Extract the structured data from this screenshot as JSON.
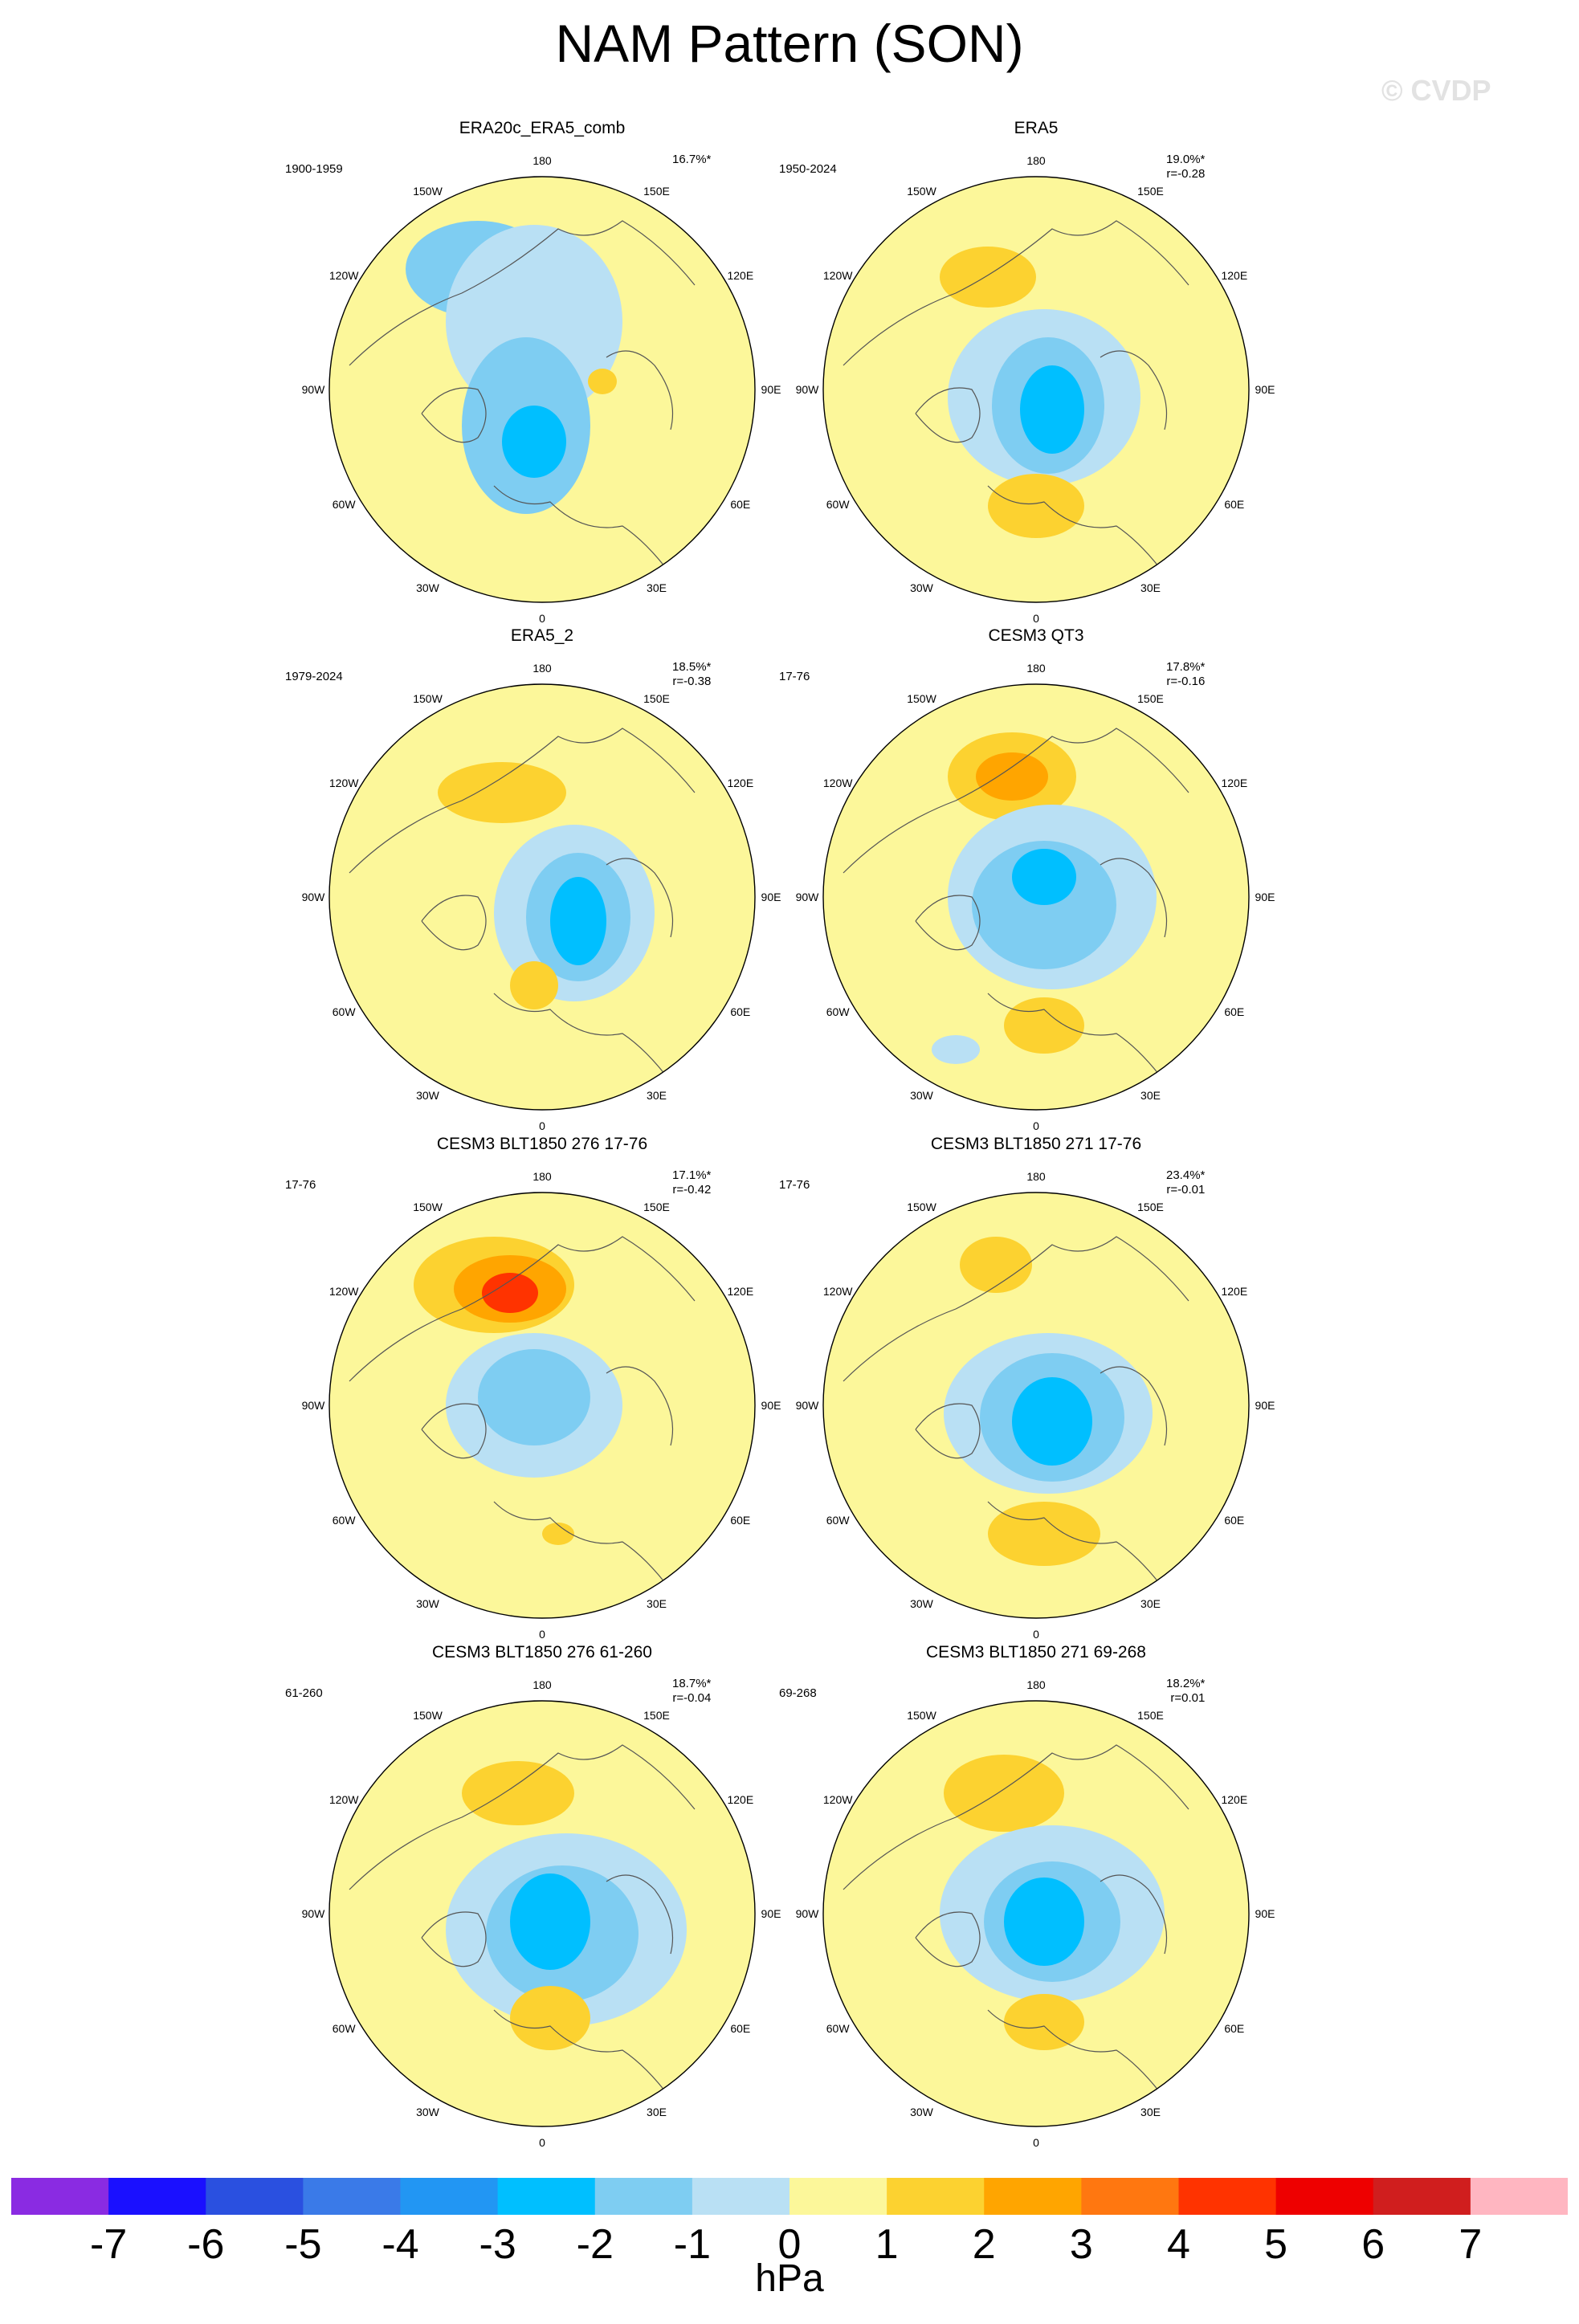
{
  "title": "NAM Pattern (SON)",
  "watermark": "© CVDP",
  "lon_labels": [
    "180",
    "150E",
    "120E",
    "90E",
    "60E",
    "30E",
    "0",
    "30W",
    "60W",
    "90W",
    "120W",
    "150W"
  ],
  "panels": [
    {
      "title": "ERA20c_ERA5_comb",
      "period": "1900-1959",
      "variance": "16.7%*",
      "corr": ""
    },
    {
      "title": "ERA5",
      "period": "1950-2024",
      "variance": "19.0%*",
      "corr": "r=-0.28"
    },
    {
      "title": "ERA5_2",
      "period": "1979-2024",
      "variance": "18.5%*",
      "corr": "r=-0.38"
    },
    {
      "title": "CESM3 QT3",
      "period": "17-76",
      "variance": "17.8%*",
      "corr": "r=-0.16"
    },
    {
      "title": "CESM3 BLT1850 276 17-76",
      "period": "17-76",
      "variance": "17.1%*",
      "corr": "r=-0.42"
    },
    {
      "title": "CESM3 BLT1850 271 17-76",
      "period": "17-76",
      "variance": "23.4%*",
      "corr": "r=-0.01"
    },
    {
      "title": "CESM3 BLT1850 276 61-260",
      "period": "61-260",
      "variance": "18.7%*",
      "corr": "r=-0.04"
    },
    {
      "title": "CESM3 BLT1850 271 69-268",
      "period": "69-268",
      "variance": "18.2%*",
      "corr": "r=0.01"
    }
  ],
  "colorbar": {
    "unit": "hPa",
    "ticks": [
      "-7",
      "-6",
      "-5",
      "-4",
      "-3",
      "-2",
      "-1",
      "0",
      "1",
      "2",
      "3",
      "4",
      "5",
      "6",
      "7"
    ],
    "colors": [
      "#8a2be2",
      "#1a10ff",
      "#2a50e0",
      "#3a7ae8",
      "#2296f3",
      "#00bfff",
      "#7ecdf2",
      "#b9e0f4",
      "#fcf79a",
      "#fcd230",
      "#ffa500",
      "#ff7710",
      "#ff3300",
      "#ee0000",
      "#d01e1e",
      "#ffb6c1"
    ]
  }
}
